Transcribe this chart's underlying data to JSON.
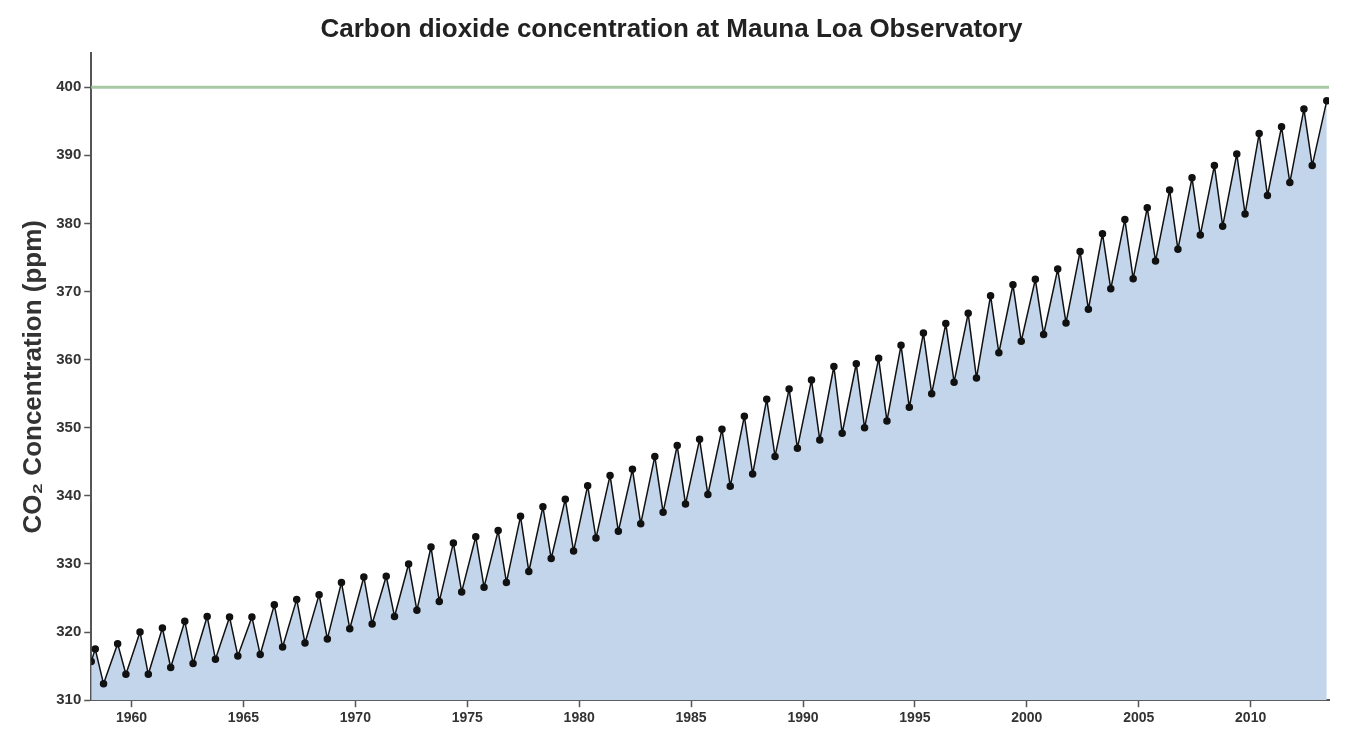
{
  "chart_data": {
    "type": "area",
    "title": "Carbon dioxide concentration at Mauna Loa Observatory",
    "ylabel": "CO₂ Concentration (ppm)",
    "xlim": [
      1958.2,
      2013.5
    ],
    "xticks": [
      1960,
      1965,
      1970,
      1975,
      1980,
      1985,
      1990,
      1995,
      2000,
      2005,
      2010
    ],
    "ylim": [
      310,
      405
    ],
    "yticks": [
      310,
      320,
      330,
      340,
      350,
      360,
      370,
      380,
      390,
      400
    ],
    "grid": false,
    "legend": false,
    "marker": "circle",
    "line_style": "solid",
    "ref_lines": [
      {
        "axis": "y",
        "value": 400,
        "color": "#a9c9a4"
      }
    ],
    "series": [
      {
        "color": "#c3d5eb",
        "x": [
          1958.2,
          1958.38,
          1958.75,
          1959.38,
          1959.75,
          1960.38,
          1960.75,
          1961.38,
          1961.75,
          1962.38,
          1962.75,
          1963.38,
          1963.75,
          1964.38,
          1964.75,
          1965.38,
          1965.75,
          1966.38,
          1966.75,
          1967.38,
          1967.75,
          1968.38,
          1968.75,
          1969.38,
          1969.75,
          1970.38,
          1970.75,
          1971.38,
          1971.75,
          1972.38,
          1972.75,
          1973.38,
          1973.75,
          1974.38,
          1974.75,
          1975.38,
          1975.75,
          1976.38,
          1976.75,
          1977.38,
          1977.75,
          1978.38,
          1978.75,
          1979.38,
          1979.75,
          1980.38,
          1980.75,
          1981.38,
          1981.75,
          1982.38,
          1982.75,
          1983.38,
          1983.75,
          1984.38,
          1984.75,
          1985.38,
          1985.75,
          1986.38,
          1986.75,
          1987.38,
          1987.75,
          1988.38,
          1988.75,
          1989.38,
          1989.75,
          1990.38,
          1990.75,
          1991.38,
          1991.75,
          1992.38,
          1992.75,
          1993.38,
          1993.75,
          1994.38,
          1994.75,
          1995.38,
          1995.75,
          1996.38,
          1996.75,
          1997.38,
          1997.75,
          1998.38,
          1998.75,
          1999.38,
          1999.75,
          2000.38,
          2000.75,
          2001.38,
          2001.75,
          2002.38,
          2002.75,
          2003.38,
          2003.75,
          2004.38,
          2004.75,
          2005.38,
          2005.75,
          2006.38,
          2006.75,
          2007.38,
          2007.75,
          2008.38,
          2008.75,
          2009.38,
          2009.75,
          2010.38,
          2010.75,
          2011.38,
          2011.75,
          2012.38,
          2012.75,
          2013.4
        ],
        "values": [
          315.7,
          317.5,
          312.4,
          318.3,
          313.8,
          320.0,
          313.8,
          320.6,
          314.8,
          321.6,
          315.4,
          322.3,
          316.0,
          322.2,
          316.5,
          322.2,
          316.7,
          324.0,
          317.8,
          324.8,
          318.4,
          325.5,
          319.0,
          327.3,
          320.5,
          328.1,
          321.2,
          328.2,
          322.3,
          330.0,
          323.2,
          332.5,
          324.5,
          333.1,
          325.9,
          334.0,
          326.6,
          334.9,
          327.3,
          337.0,
          328.9,
          338.4,
          330.8,
          339.5,
          331.9,
          341.5,
          333.8,
          343.0,
          334.8,
          343.9,
          335.9,
          345.8,
          337.6,
          347.4,
          338.8,
          348.3,
          340.2,
          349.8,
          341.4,
          351.7,
          343.2,
          354.2,
          345.8,
          355.7,
          347.0,
          357.0,
          348.2,
          359.0,
          349.2,
          359.4,
          350.0,
          360.2,
          351.0,
          362.1,
          353.0,
          363.9,
          355.0,
          365.3,
          356.7,
          366.8,
          357.3,
          369.4,
          361.0,
          371.0,
          362.7,
          371.8,
          363.7,
          373.3,
          365.4,
          375.9,
          367.4,
          378.5,
          370.4,
          380.6,
          371.9,
          382.3,
          374.5,
          384.9,
          376.2,
          386.7,
          378.3,
          388.5,
          379.6,
          390.2,
          381.4,
          393.2,
          384.1,
          394.2,
          386.0,
          396.8,
          388.5,
          398.0
        ]
      }
    ]
  }
}
